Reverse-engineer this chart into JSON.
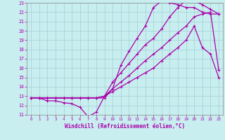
{
  "xlabel": "Windchill (Refroidissement éolien,°C)",
  "bg_color": "#c8eef0",
  "grid_color": "#aad4d8",
  "line_color": "#aa00aa",
  "spine_color": "#888888",
  "xlim": [
    -0.5,
    23.5
  ],
  "ylim": [
    11,
    23
  ],
  "xticks": [
    0,
    1,
    2,
    3,
    4,
    5,
    6,
    7,
    8,
    9,
    10,
    11,
    12,
    13,
    14,
    15,
    16,
    17,
    18,
    19,
    20,
    21,
    22,
    23
  ],
  "yticks": [
    11,
    12,
    13,
    14,
    15,
    16,
    17,
    18,
    19,
    20,
    21,
    22,
    23
  ],
  "curve1_x": [
    0,
    1,
    2,
    3,
    4,
    5,
    6,
    7,
    8,
    9,
    10,
    11,
    12,
    13,
    14,
    15,
    16,
    17,
    18,
    19,
    20,
    21,
    22,
    23
  ],
  "curve1_y": [
    12.8,
    12.8,
    12.5,
    12.5,
    12.3,
    12.2,
    11.8,
    10.8,
    11.3,
    13.0,
    13.5,
    14.0,
    14.5,
    15.0,
    15.5,
    16.0,
    16.8,
    17.5,
    18.2,
    19.0,
    20.5,
    18.2,
    17.5,
    15.0
  ],
  "curve2_x": [
    0,
    1,
    2,
    3,
    4,
    5,
    6,
    7,
    8,
    9,
    10,
    11,
    12,
    13,
    14,
    15,
    16,
    17,
    18,
    19,
    20,
    21,
    22,
    23
  ],
  "curve2_y": [
    12.8,
    12.8,
    12.8,
    12.8,
    12.8,
    12.8,
    12.8,
    12.8,
    12.8,
    13.0,
    13.8,
    14.5,
    15.2,
    16.0,
    16.8,
    17.5,
    18.2,
    19.0,
    19.8,
    20.5,
    21.5,
    21.8,
    22.0,
    15.8
  ],
  "curve3_x": [
    0,
    1,
    2,
    3,
    4,
    5,
    6,
    7,
    8,
    9,
    10,
    11,
    12,
    13,
    14,
    15,
    16,
    17,
    18,
    19,
    20,
    21,
    22,
    23
  ],
  "curve3_y": [
    12.8,
    12.8,
    12.8,
    12.8,
    12.8,
    12.8,
    12.8,
    12.8,
    12.8,
    13.0,
    14.5,
    15.5,
    16.5,
    17.5,
    18.5,
    19.2,
    20.2,
    21.5,
    22.5,
    23.3,
    23.2,
    22.8,
    22.3,
    21.8
  ],
  "curve4_x": [
    0,
    1,
    2,
    3,
    4,
    5,
    6,
    7,
    8,
    9,
    10,
    11,
    12,
    13,
    14,
    15,
    16,
    17,
    18,
    19,
    20,
    21,
    22,
    23
  ],
  "curve4_y": [
    12.8,
    12.8,
    12.8,
    12.8,
    12.8,
    12.8,
    12.8,
    12.8,
    12.8,
    12.8,
    13.8,
    16.3,
    17.8,
    19.2,
    20.5,
    22.5,
    23.2,
    23.0,
    22.8,
    22.5,
    22.5,
    22.0,
    21.8,
    21.8
  ]
}
